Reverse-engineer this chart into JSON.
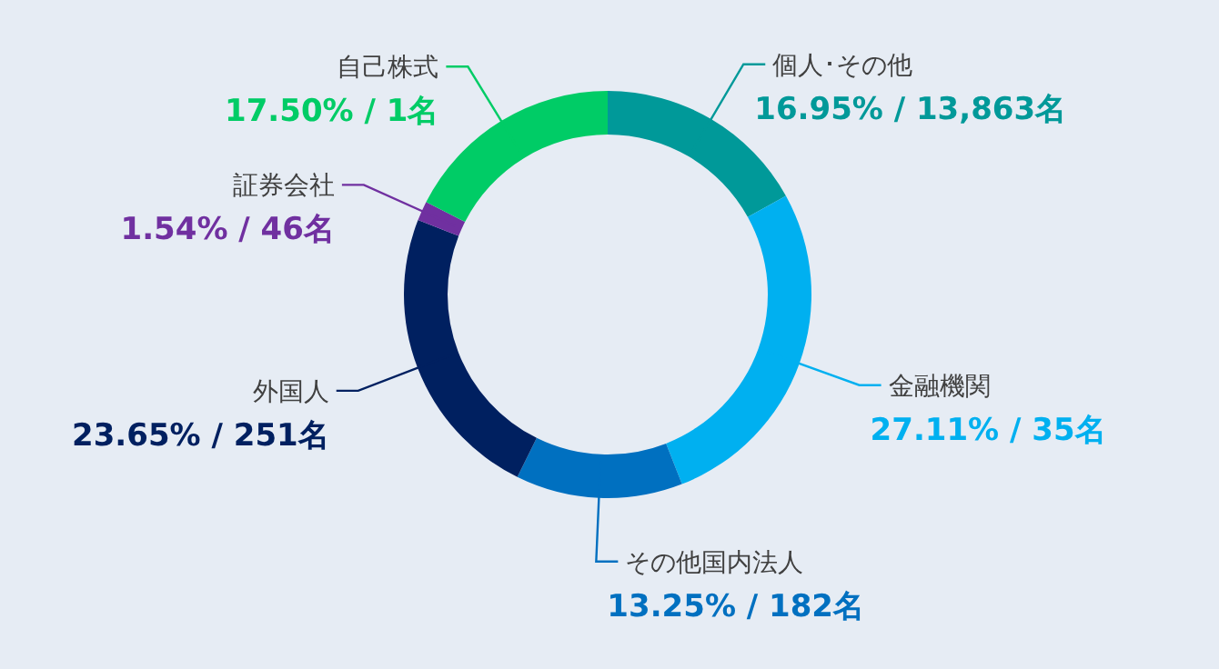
{
  "chart_data": {
    "type": "donut",
    "categories": [
      "個人･その他",
      "金融機関",
      "その他国内法人",
      "外国人",
      "証券会社",
      "自己株式"
    ],
    "values": [
      16.95,
      27.11,
      13.25,
      23.65,
      1.54,
      17.5
    ],
    "colors": [
      "#009999",
      "#00b0f0",
      "#0070c0",
      "#002060",
      "#7030a0",
      "#00cc66"
    ],
    "value_labels": [
      "16.95% / 13,863名",
      "27.11% / 35名",
      "13.25% / 182名",
      "23.65% / 251名",
      "1.54% / 46名",
      "17.50% / 1名"
    ]
  }
}
